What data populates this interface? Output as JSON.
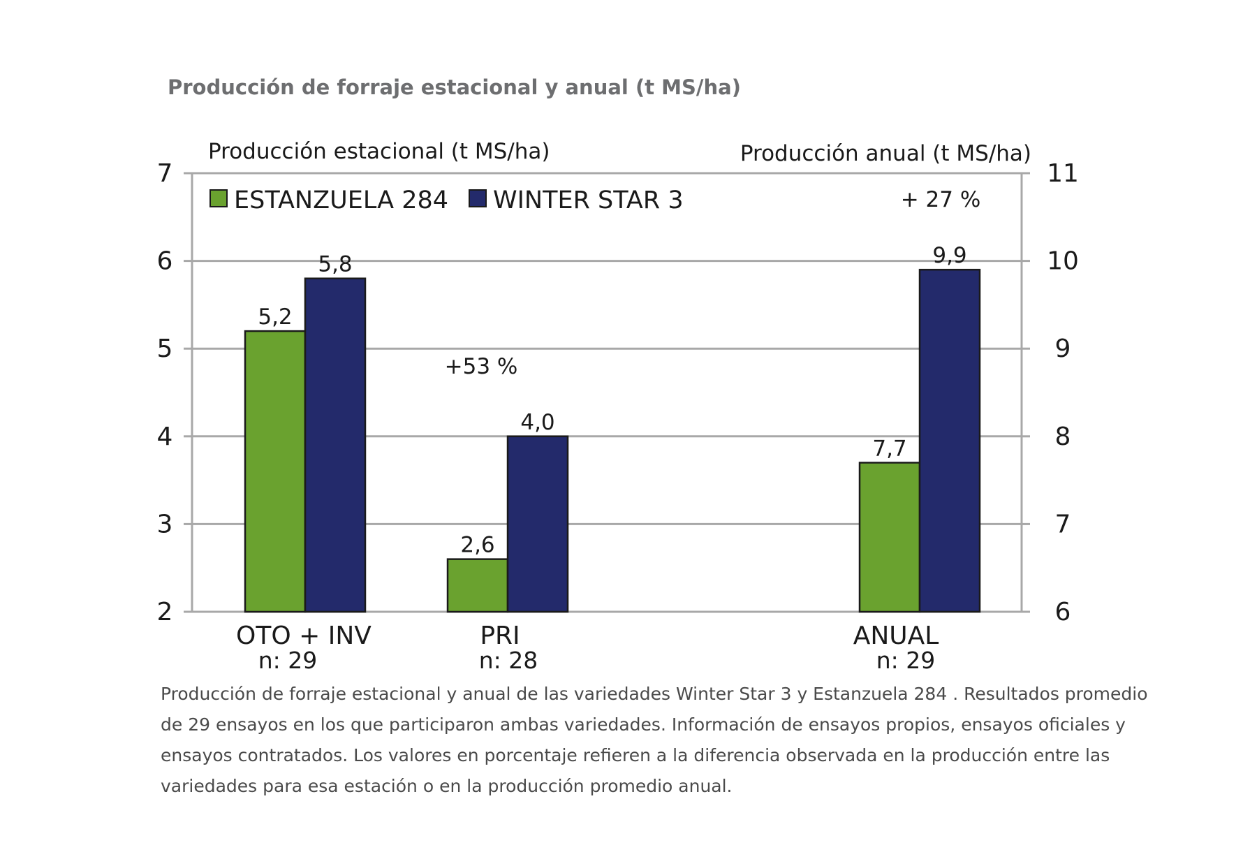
{
  "title": "Producción de forraje estacional y anual (t MS/ha)",
  "chart_data": {
    "type": "bar",
    "categories": [
      "OTO + INV",
      "PRI",
      "ANUAL"
    ],
    "category_n": [
      "n: 29",
      "n: 28",
      "n:  29"
    ],
    "series": [
      {
        "name": "ESTANZUELA 284",
        "color": "#6aa22f",
        "values": [
          5.2,
          2.6,
          7.7
        ],
        "labels": [
          "5,2",
          "2,6",
          "7,7"
        ]
      },
      {
        "name": "WINTER STAR 3",
        "color": "#232a6b",
        "values": [
          5.8,
          4.0,
          9.9
        ],
        "labels": [
          "5,8",
          "4,0",
          "9,9"
        ]
      }
    ],
    "axis_by_category": [
      "left",
      "left",
      "right"
    ],
    "annotations": [
      "",
      "+53 %",
      "+ 27 %"
    ],
    "ylabel_left": "Producción estacional (t MS/ha)",
    "ylabel_right": "Producción anual (t MS/ha)",
    "ylim_left": [
      2,
      7
    ],
    "ylim_right": [
      6,
      11
    ],
    "yticks_left": [
      "2",
      "3",
      "4",
      "5",
      "6",
      "7"
    ],
    "yticks_right": [
      "6",
      "7",
      "8",
      "9",
      "10",
      "11"
    ],
    "grid": true,
    "legend": "top-left"
  },
  "caption": [
    "Producción de forraje estacional y anual de las variedades Winter Star 3 y  Estanzuela 284 . Resultados promedio",
    "de 29 ensayos en los que participaron ambas variedades. Información de ensayos propios, ensayos oficiales y",
    "ensayos contratados. Los valores en porcentaje refieren a la diferencia observada en la producción entre las",
    "variedades para esa estación o en la producción promedio anual."
  ]
}
